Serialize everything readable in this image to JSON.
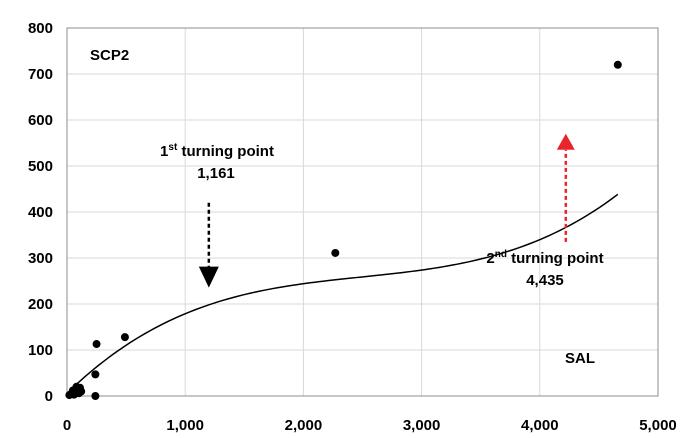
{
  "chart_data": {
    "type": "scatter",
    "xlim": [
      0,
      5000
    ],
    "ylim": [
      0,
      800
    ],
    "x_ticks": [
      0,
      1000,
      2000,
      3000,
      4000,
      5000
    ],
    "y_ticks": [
      0,
      100,
      200,
      300,
      400,
      500,
      600,
      700,
      800
    ],
    "x_tick_labels": [
      "0",
      "1,000",
      "2,000",
      "3,000",
      "4,000",
      "5,000"
    ],
    "y_tick_labels": [
      "0",
      "100",
      "200",
      "300",
      "400",
      "500",
      "600",
      "700",
      "800"
    ],
    "grid": true,
    "series": [
      {
        "points": [
          {
            "x": 20,
            "y": 2
          },
          {
            "x": 40,
            "y": 5
          },
          {
            "x": 50,
            "y": 12
          },
          {
            "x": 60,
            "y": 3
          },
          {
            "x": 70,
            "y": 8
          },
          {
            "x": 80,
            "y": 20
          },
          {
            "x": 90,
            "y": 15
          },
          {
            "x": 100,
            "y": 6
          },
          {
            "x": 110,
            "y": 18
          },
          {
            "x": 120,
            "y": 10
          },
          {
            "x": 240,
            "y": 0
          },
          {
            "x": 240,
            "y": 47
          },
          {
            "x": 250,
            "y": 113
          },
          {
            "x": 490,
            "y": 128
          },
          {
            "x": 2270,
            "y": 311
          },
          {
            "x": 4660,
            "y": 720
          }
        ],
        "color": "#000000"
      }
    ],
    "trendline": {
      "type": "cubic",
      "coefficients": [
        5.9,
        0.2507,
        -8.98e-05,
        1.2e-08
      ],
      "x_range": [
        0,
        4660
      ],
      "color": "#000000"
    },
    "annotations": {
      "var_label": "SCP2",
      "axis_label": "SAL",
      "first_turning_point": {
        "ordinal": "1",
        "suffix": "st",
        "text": " turning point",
        "value": "1,161",
        "arrow_x": 1200,
        "arrow_from_y": 420,
        "arrow_to_y": 240,
        "arrow_color": "#000000"
      },
      "second_turning_point": {
        "ordinal": "2",
        "suffix": "nd",
        "text": " turning point",
        "value": "4,435",
        "arrow_x": 4220,
        "arrow_from_y": 335,
        "arrow_to_y": 570,
        "arrow_color": "#e8262a"
      }
    }
  }
}
